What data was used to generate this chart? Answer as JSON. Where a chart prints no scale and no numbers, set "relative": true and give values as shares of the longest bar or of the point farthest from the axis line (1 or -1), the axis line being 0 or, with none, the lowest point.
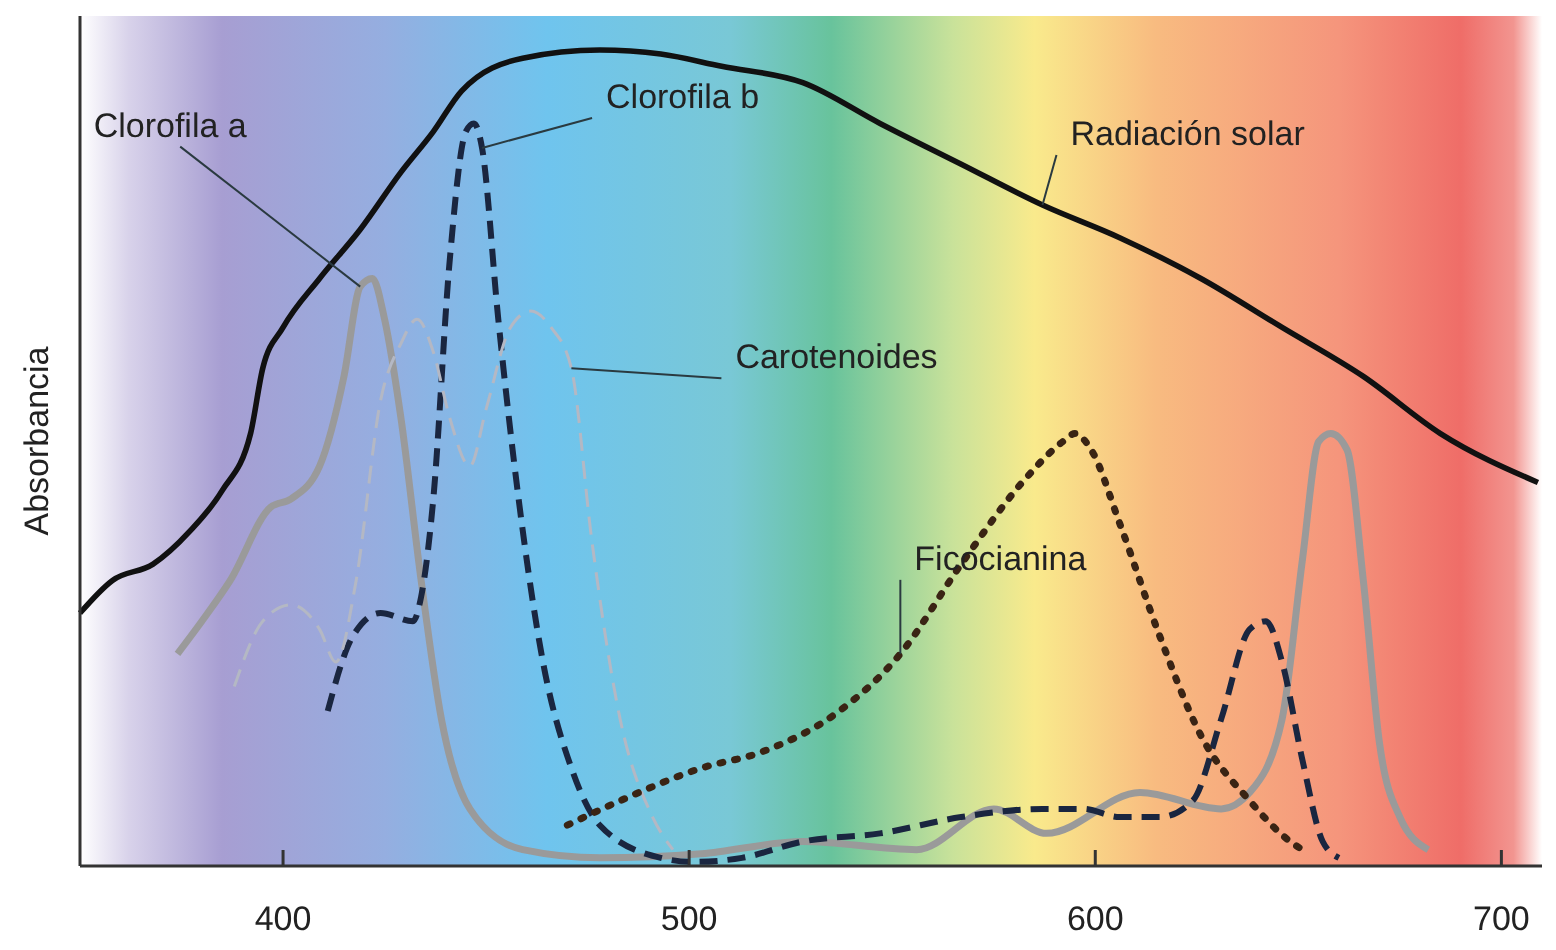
{
  "chart_data": {
    "type": "line",
    "relative": true,
    "ylabel": "Absorbancia",
    "xlim": [
      350,
      710
    ],
    "xticks": [
      400,
      500,
      600,
      700
    ],
    "series": [
      {
        "name": "Radiación solar",
        "color": "#111111",
        "line_style": "solid",
        "x": [
          350,
          358,
          368,
          377,
          385,
          392,
          395,
          400,
          409,
          419,
          429,
          437,
          444,
          459,
          478,
          493,
          508,
          528,
          547,
          567,
          587,
          606,
          626,
          646,
          666,
          685,
          709
        ],
        "values": [
          0.31,
          0.35,
          0.37,
          0.41,
          0.46,
          0.53,
          0.61,
          0.66,
          0.72,
          0.78,
          0.85,
          0.9,
          0.95,
          0.99,
          1.0,
          0.995,
          0.98,
          0.96,
          0.91,
          0.86,
          0.81,
          0.77,
          0.72,
          0.66,
          0.6,
          0.53,
          0.47
        ]
      },
      {
        "name": "Clorofila a",
        "color": "#9a9a9a",
        "line_style": "solid",
        "x": [
          374,
          380,
          387,
          397,
          402,
          409,
          415,
          419,
          422,
          425,
          429,
          434,
          439,
          446,
          459,
          478,
          503,
          528,
          556,
          575,
          588,
          611,
          631,
          638,
          646,
          651,
          655,
          658,
          662,
          666,
          670,
          675,
          682
        ],
        "values": [
          0.26,
          0.3,
          0.35,
          0.44,
          0.45,
          0.49,
          0.6,
          0.71,
          0.72,
          0.67,
          0.55,
          0.35,
          0.18,
          0.07,
          0.02,
          0.01,
          0.015,
          0.03,
          0.02,
          0.07,
          0.04,
          0.09,
          0.07,
          0.09,
          0.18,
          0.375,
          0.52,
          0.53,
          0.51,
          0.35,
          0.15,
          0.06,
          0.02
        ]
      },
      {
        "name": "Clorofila b",
        "color": "#1a2640",
        "line_style": "dashed",
        "x": [
          411,
          417,
          424,
          432,
          434,
          437,
          441,
          445,
          447,
          449,
          453,
          458,
          464,
          471,
          478,
          493,
          501,
          513,
          528,
          547,
          567,
          587,
          597,
          606,
          616,
          624,
          631,
          638,
          642,
          646,
          651,
          656,
          660
        ],
        "values": [
          0.19,
          0.28,
          0.31,
          0.3,
          0.33,
          0.45,
          0.74,
          0.9,
          0.91,
          0.88,
          0.67,
          0.45,
          0.25,
          0.12,
          0.05,
          0.01,
          0.005,
          0.01,
          0.03,
          0.04,
          0.06,
          0.07,
          0.07,
          0.06,
          0.06,
          0.08,
          0.18,
          0.29,
          0.3,
          0.25,
          0.13,
          0.03,
          0.01
        ]
      },
      {
        "name": "Carotenoides",
        "color": "#b4b8c4",
        "line_style": "dashed",
        "x": [
          388,
          395,
          402,
          409,
          413,
          418,
          424,
          429,
          433,
          437,
          441,
          446,
          450,
          456,
          461,
          466,
          471,
          476,
          483,
          491,
          496
        ],
        "values": [
          0.22,
          0.3,
          0.32,
          0.29,
          0.25,
          0.35,
          0.57,
          0.64,
          0.67,
          0.63,
          0.55,
          0.49,
          0.56,
          0.66,
          0.68,
          0.66,
          0.61,
          0.4,
          0.18,
          0.06,
          0.02
        ]
      },
      {
        "name": "Ficocianina",
        "color": "#3a2414",
        "line_style": "dotted",
        "x": [
          470,
          483,
          503,
          518,
          537,
          552,
          567,
          582,
          592,
          595,
          599,
          606,
          616,
          626,
          638,
          648,
          651
        ],
        "values": [
          0.05,
          0.08,
          0.12,
          0.14,
          0.19,
          0.26,
          0.37,
          0.47,
          0.52,
          0.53,
          0.51,
          0.42,
          0.28,
          0.16,
          0.08,
          0.03,
          0.02
        ]
      }
    ]
  }
}
